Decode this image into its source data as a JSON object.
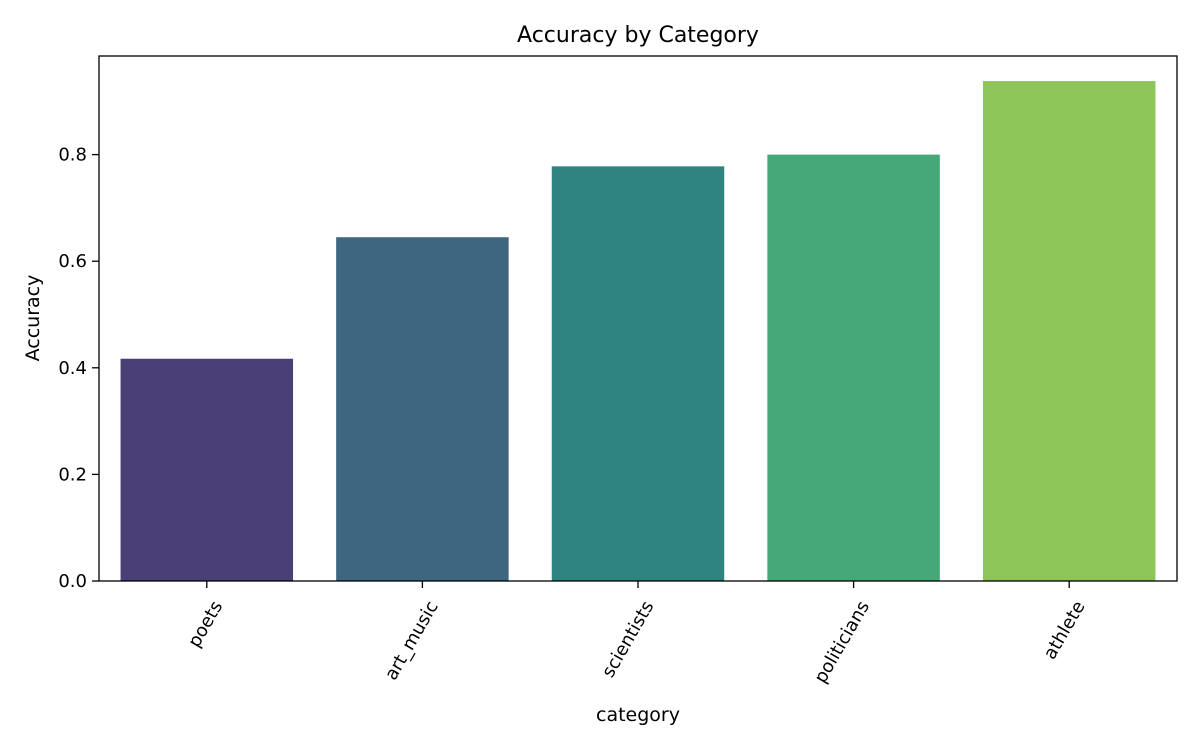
{
  "chart_data": {
    "type": "bar",
    "title": "Accuracy by Category",
    "xlabel": "category",
    "ylabel": "Accuracy",
    "categories": [
      "poets",
      "art_music",
      "scientists",
      "politicians",
      "athlete"
    ],
    "values": [
      0.417,
      0.645,
      0.778,
      0.8,
      0.938
    ],
    "colors": [
      "#4a4077",
      "#3e6680",
      "#2e857f",
      "#47a877",
      "#8ec558"
    ],
    "ylim": [
      0,
      0.985
    ],
    "yticks": [
      0.0,
      0.2,
      0.4,
      0.6,
      0.8
    ],
    "ytick_labels": [
      "0.0",
      "0.2",
      "0.4",
      "0.6",
      "0.8"
    ],
    "grid": false,
    "legend": "none"
  }
}
